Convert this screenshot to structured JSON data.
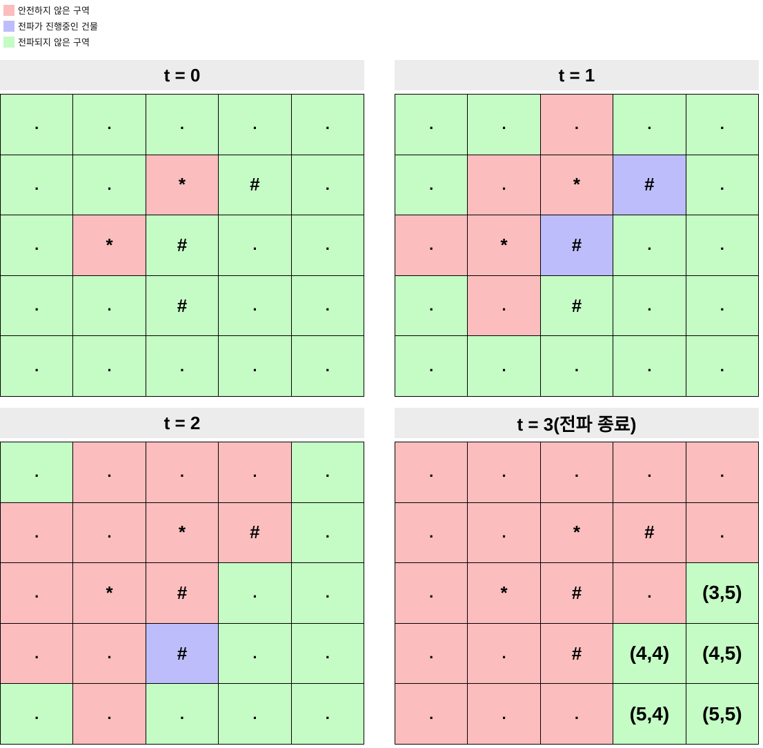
{
  "legend": [
    {
      "key": "unsafe",
      "label": "안전하지 않은 구역",
      "color": "#fbbdbd"
    },
    {
      "key": "spreading",
      "label": "전파가 진행중인 건물",
      "color": "#bdbdfb"
    },
    {
      "key": "safe",
      "label": "전파되지 않은 구역",
      "color": "#c5fbc5"
    }
  ],
  "panels": [
    {
      "title": "t = 0",
      "grid": [
        [
          ".",
          ".",
          ".",
          ".",
          "."
        ],
        [
          ".",
          ".",
          "*",
          "#",
          "."
        ],
        [
          ".",
          "*",
          "#",
          ".",
          "."
        ],
        [
          ".",
          ".",
          "#",
          ".",
          "."
        ],
        [
          ".",
          ".",
          ".",
          ".",
          "."
        ]
      ],
      "states": [
        [
          "safe",
          "safe",
          "safe",
          "safe",
          "safe"
        ],
        [
          "safe",
          "safe",
          "unsafe",
          "safe",
          "safe"
        ],
        [
          "safe",
          "unsafe",
          "safe",
          "safe",
          "safe"
        ],
        [
          "safe",
          "safe",
          "safe",
          "safe",
          "safe"
        ],
        [
          "safe",
          "safe",
          "safe",
          "safe",
          "safe"
        ]
      ]
    },
    {
      "title": "t = 1",
      "grid": [
        [
          ".",
          ".",
          ".",
          ".",
          "."
        ],
        [
          ".",
          ".",
          "*",
          "#",
          "."
        ],
        [
          ".",
          "*",
          "#",
          ".",
          "."
        ],
        [
          ".",
          ".",
          "#",
          ".",
          "."
        ],
        [
          ".",
          ".",
          ".",
          ".",
          "."
        ]
      ],
      "states": [
        [
          "safe",
          "safe",
          "unsafe",
          "safe",
          "safe"
        ],
        [
          "safe",
          "unsafe",
          "unsafe",
          "spreading",
          "safe"
        ],
        [
          "unsafe",
          "unsafe",
          "spreading",
          "safe",
          "safe"
        ],
        [
          "safe",
          "unsafe",
          "safe",
          "safe",
          "safe"
        ],
        [
          "safe",
          "safe",
          "safe",
          "safe",
          "safe"
        ]
      ]
    },
    {
      "title": "t = 2",
      "grid": [
        [
          ".",
          ".",
          ".",
          ".",
          "."
        ],
        [
          ".",
          ".",
          "*",
          "#",
          "."
        ],
        [
          ".",
          "*",
          "#",
          ".",
          "."
        ],
        [
          ".",
          ".",
          "#",
          ".",
          "."
        ],
        [
          ".",
          ".",
          ".",
          ".",
          "."
        ]
      ],
      "states": [
        [
          "safe",
          "unsafe",
          "unsafe",
          "unsafe",
          "safe"
        ],
        [
          "unsafe",
          "unsafe",
          "unsafe",
          "unsafe",
          "safe"
        ],
        [
          "unsafe",
          "unsafe",
          "unsafe",
          "safe",
          "safe"
        ],
        [
          "unsafe",
          "unsafe",
          "spreading",
          "safe",
          "safe"
        ],
        [
          "safe",
          "unsafe",
          "safe",
          "safe",
          "safe"
        ]
      ]
    },
    {
      "title": "t = 3(전파 종료)",
      "grid": [
        [
          ".",
          ".",
          ".",
          ".",
          "."
        ],
        [
          ".",
          ".",
          "*",
          "#",
          "."
        ],
        [
          ".",
          "*",
          "#",
          ".",
          "(3,5)"
        ],
        [
          ".",
          ".",
          "#",
          "(4,4)",
          "(4,5)"
        ],
        [
          ".",
          ".",
          ".",
          "(5,4)",
          "(5,5)"
        ]
      ],
      "states": [
        [
          "unsafe",
          "unsafe",
          "unsafe",
          "unsafe",
          "unsafe"
        ],
        [
          "unsafe",
          "unsafe",
          "unsafe",
          "unsafe",
          "unsafe"
        ],
        [
          "unsafe",
          "unsafe",
          "unsafe",
          "unsafe",
          "safe"
        ],
        [
          "unsafe",
          "unsafe",
          "unsafe",
          "safe",
          "safe"
        ],
        [
          "unsafe",
          "unsafe",
          "unsafe",
          "safe",
          "safe"
        ]
      ]
    }
  ]
}
